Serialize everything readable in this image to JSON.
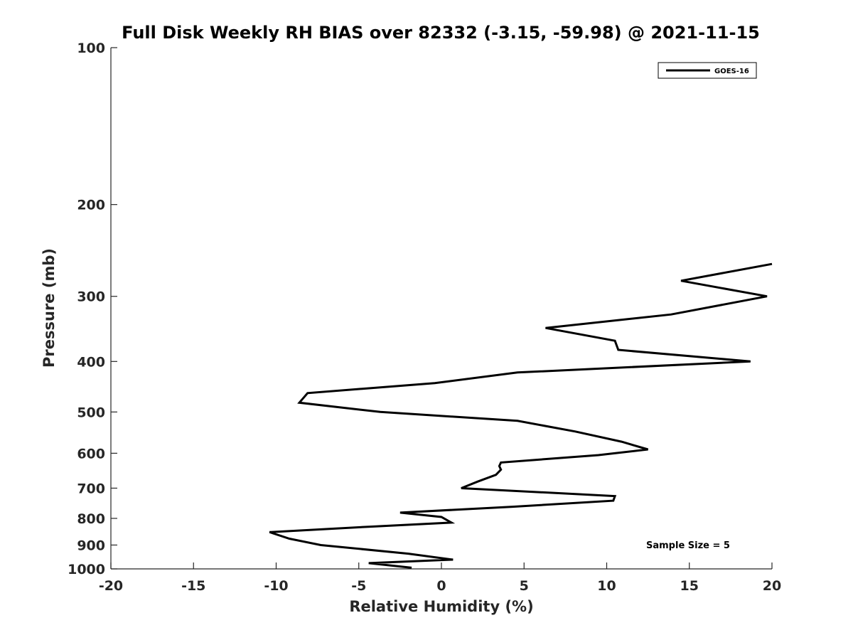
{
  "chart_data": {
    "type": "line",
    "title": "Full Disk Weekly RH BIAS over 82332 (-3.15, -59.98) @ 2021-11-15",
    "xlabel": "Relative Humidity (%)",
    "ylabel": "Pressure (mb)",
    "xlim": [
      -20,
      20
    ],
    "ylim": [
      100,
      1000
    ],
    "y_scale": "log",
    "y_reversed": true,
    "x_ticks": [
      "-20",
      "-15",
      "-10",
      "-5",
      "0",
      "5",
      "10",
      "15",
      "20"
    ],
    "y_ticks": [
      "100",
      "200",
      "300",
      "400",
      "500",
      "600",
      "700",
      "800",
      "900",
      "1000"
    ],
    "grid": false,
    "legend_position": "top-right",
    "annotation": "Sample Size = 5",
    "series": [
      {
        "name": "GOES-16",
        "color": "#000000",
        "x": [
          20,
          14.5,
          19.7,
          13.9,
          6.3,
          10.5,
          10.7,
          18.7,
          4.6,
          -0.4,
          -8.1,
          -8.6,
          -3.7,
          4.6,
          8.1,
          10.9,
          12.5,
          9.5,
          3.6,
          3.5,
          3.6,
          3.3,
          2.2,
          1.2,
          10.5,
          10.4,
          4.3,
          -2.5,
          0,
          0.6,
          -4.4,
          -10.4,
          -9.2,
          -7.3,
          -2,
          0.7,
          -4.4,
          -1.8
        ],
        "y": [
          260,
          280,
          300,
          325,
          345,
          365,
          380,
          400,
          420,
          440,
          460,
          480,
          500,
          520,
          545,
          570,
          590,
          605,
          625,
          635,
          645,
          660,
          680,
          700,
          725,
          740,
          760,
          780,
          795,
          815,
          830,
          850,
          875,
          900,
          935,
          960,
          975,
          995
        ]
      }
    ]
  }
}
